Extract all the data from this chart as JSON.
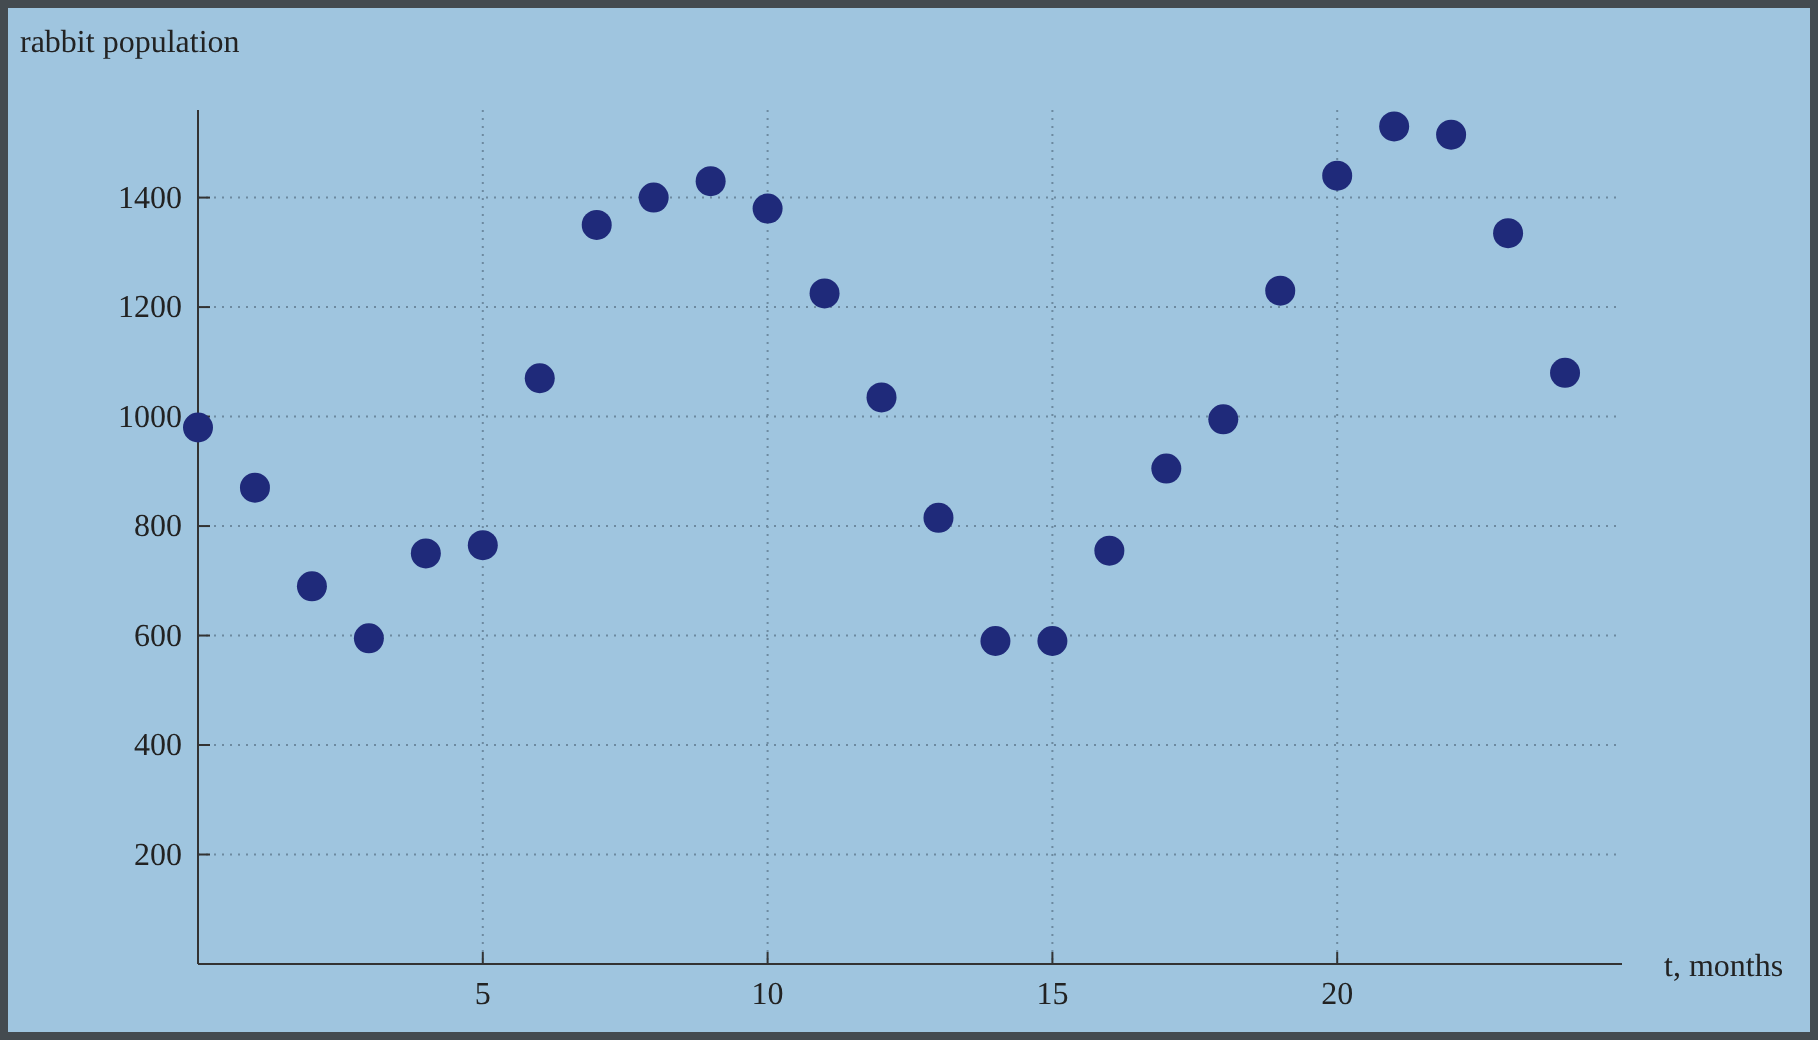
{
  "chart_data": {
    "type": "scatter",
    "xlabel": "t, months",
    "ylabel": "rabbit population",
    "x": [
      0,
      1,
      2,
      3,
      4,
      5,
      6,
      7,
      8,
      9,
      10,
      11,
      12,
      13,
      14,
      15,
      16,
      17,
      18,
      19,
      20,
      21,
      22,
      23,
      24
    ],
    "series": [
      {
        "color": "#1f2a7a",
        "values": [
          980,
          870,
          690,
          595,
          750,
          765,
          1070,
          1350,
          1400,
          1430,
          1380,
          1225,
          1035,
          815,
          590,
          590,
          755,
          905,
          995,
          1230,
          1440,
          1530,
          1515,
          1335,
          1080
        ]
      }
    ],
    "xlim": [
      0,
      25
    ],
    "ylim": [
      0,
      1560
    ],
    "xticks": [
      5,
      10,
      15,
      20
    ],
    "yticks": [
      200,
      400,
      600,
      800,
      1000,
      1200,
      1400
    ],
    "grid": true,
    "marker": "circle"
  }
}
